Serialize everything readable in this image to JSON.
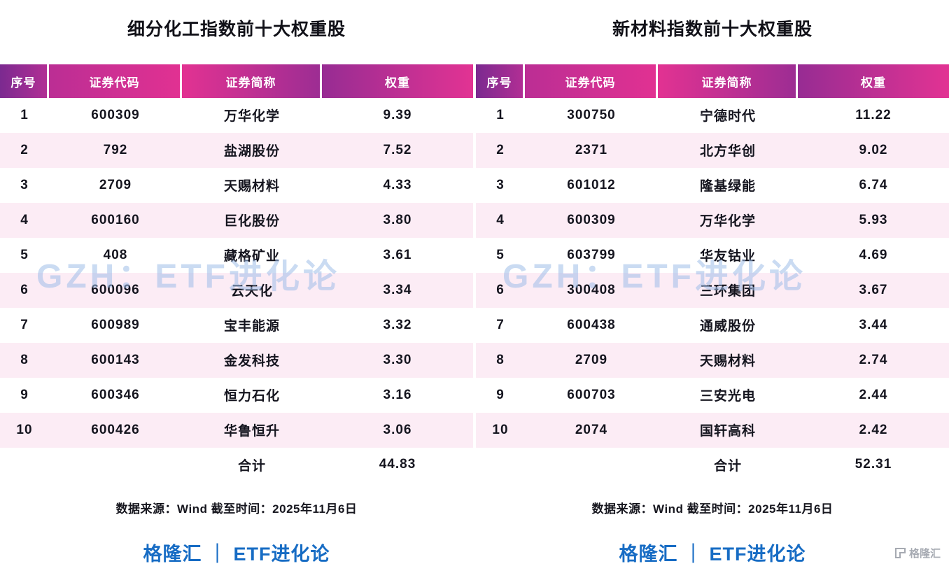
{
  "watermark": {
    "text": "GZH：ETF进化论"
  },
  "corner_logo": {
    "text": "格隆汇"
  },
  "chart_data": [
    {
      "type": "table",
      "title": "细分化工指数前十大权重股",
      "columns": [
        "序号",
        "证券代码",
        "证券简称",
        "权重"
      ],
      "rows": [
        [
          "1",
          "600309",
          "万华化学",
          "9.39"
        ],
        [
          "2",
          "792",
          "盐湖股份",
          "7.52"
        ],
        [
          "3",
          "2709",
          "天赐材料",
          "4.33"
        ],
        [
          "4",
          "600160",
          "巨化股份",
          "3.80"
        ],
        [
          "5",
          "408",
          "藏格矿业",
          "3.61"
        ],
        [
          "6",
          "600096",
          "云天化",
          "3.34"
        ],
        [
          "7",
          "600989",
          "宝丰能源",
          "3.32"
        ],
        [
          "8",
          "600143",
          "金发科技",
          "3.30"
        ],
        [
          "9",
          "600346",
          "恒力石化",
          "3.16"
        ],
        [
          "10",
          "600426",
          "华鲁恒升",
          "3.06"
        ]
      ],
      "total_label": "合计",
      "total_value": "44.83",
      "source": "数据来源：Wind 截至时间：2025年11月6日",
      "brand": "格隆汇 ｜ ETF进化论"
    },
    {
      "type": "table",
      "title": "新材料指数前十大权重股",
      "columns": [
        "序号",
        "证券代码",
        "证券简称",
        "权重"
      ],
      "rows": [
        [
          "1",
          "300750",
          "宁德时代",
          "11.22"
        ],
        [
          "2",
          "2371",
          "北方华创",
          "9.02"
        ],
        [
          "3",
          "601012",
          "隆基绿能",
          "6.74"
        ],
        [
          "4",
          "600309",
          "万华化学",
          "5.93"
        ],
        [
          "5",
          "603799",
          "华友钴业",
          "4.69"
        ],
        [
          "6",
          "300408",
          "三环集团",
          "3.67"
        ],
        [
          "7",
          "600438",
          "通威股份",
          "3.44"
        ],
        [
          "8",
          "2709",
          "天赐材料",
          "2.74"
        ],
        [
          "9",
          "600703",
          "三安光电",
          "2.44"
        ],
        [
          "10",
          "2074",
          "国轩高科",
          "2.42"
        ]
      ],
      "total_label": "合计",
      "total_value": "52.31",
      "source": "数据来源：Wind 截至时间：2025年11月6日",
      "brand": "格隆汇 ｜ ETF进化论"
    }
  ]
}
